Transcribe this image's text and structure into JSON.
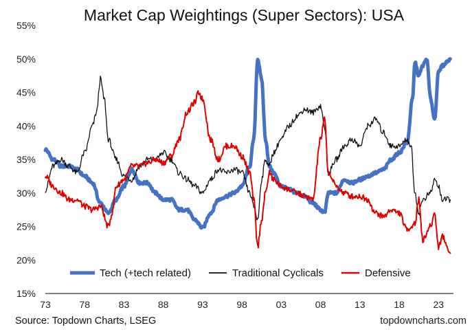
{
  "chart_data": {
    "type": "line",
    "title": "Market Cap Weightings (Super Sectors): USA",
    "xlabel": "",
    "ylabel": "",
    "x_tick_labels": [
      "73",
      "78",
      "83",
      "88",
      "93",
      "98",
      "03",
      "08",
      "13",
      "18",
      "23"
    ],
    "x_tick_years": [
      1973,
      1978,
      1983,
      1988,
      1993,
      1998,
      2003,
      2008,
      2013,
      2018,
      2023
    ],
    "x_range": [
      1973,
      2024.9
    ],
    "y_tick_labels": [
      "15%",
      "20%",
      "25%",
      "30%",
      "35%",
      "40%",
      "45%",
      "50%",
      "55%"
    ],
    "ylim": [
      15,
      55
    ],
    "y_tick_step": 5,
    "legend_position": "bottom-inside",
    "series": [
      {
        "name": "Tech (+tech related)",
        "color": "#4472C4",
        "x": [
          1973,
          1974,
          1975,
          1976,
          1977,
          1978,
          1979,
          1980,
          1981,
          1982,
          1983,
          1984,
          1985,
          1986,
          1987,
          1988,
          1989,
          1990,
          1991,
          1992,
          1993,
          1994,
          1995,
          1996,
          1997,
          1998,
          1999,
          1999.5,
          2000,
          2000.5,
          2001,
          2001.5,
          2002,
          2003,
          2004,
          2005,
          2006,
          2007,
          2008,
          2008.5,
          2009,
          2010,
          2011,
          2012,
          2013,
          2014,
          2015,
          2016,
          2017,
          2018,
          2019,
          2019.7,
          2020,
          2020.5,
          2021,
          2021.5,
          2022,
          2022.5,
          2023,
          2023.5,
          2024.5
        ],
        "values": [
          36.5,
          35,
          34,
          34,
          33.5,
          32.5,
          31.5,
          28.5,
          27,
          29,
          31,
          33.5,
          31.5,
          31.5,
          30,
          29,
          29,
          27.5,
          27.5,
          26,
          24.8,
          27,
          29,
          29.5,
          30,
          31,
          34,
          38,
          50,
          47,
          38,
          34,
          33,
          31,
          30.5,
          30,
          29.5,
          28.5,
          27.5,
          27,
          30,
          30,
          32,
          31.5,
          32,
          32.5,
          33,
          33.5,
          35,
          36,
          37.5,
          44,
          49.5,
          47.5,
          49,
          50,
          44,
          41,
          48,
          49,
          50
        ]
      },
      {
        "name": "Traditional Cyclicals",
        "color": "#111111",
        "x": [
          1973,
          1974,
          1975,
          1976,
          1977,
          1978,
          1979,
          1979.5,
          1980,
          1980.5,
          1981,
          1982,
          1983,
          1984,
          1985,
          1986,
          1987,
          1988,
          1989,
          1990,
          1991,
          1992,
          1993,
          1994,
          1995,
          1996,
          1997,
          1998,
          1999,
          1999.5,
          2000,
          2000.5,
          2001,
          2001.5,
          2002,
          2003,
          2004,
          2005,
          2006,
          2007,
          2008,
          2008.5,
          2009,
          2010,
          2011,
          2012,
          2013,
          2014,
          2015,
          2016,
          2017,
          2018,
          2019,
          2019.5,
          2020,
          2020.5,
          2021,
          2022,
          2022.5,
          2023,
          2023.5,
          2024.5
        ],
        "values": [
          30.5,
          34,
          35,
          34,
          33,
          36,
          40,
          42,
          47,
          44,
          38,
          35,
          32.5,
          32,
          34,
          35,
          35,
          36,
          35,
          33,
          32,
          31,
          30,
          32,
          33.5,
          33,
          33.5,
          33,
          30,
          28,
          26,
          32,
          35,
          34,
          36,
          38,
          40,
          41.5,
          42.5,
          42,
          43,
          40,
          33,
          35,
          37,
          38,
          37,
          40,
          41,
          39,
          37,
          37,
          38,
          37,
          30,
          27,
          29,
          30,
          32,
          31,
          29,
          29
        ]
      },
      {
        "name": "Defensive",
        "color": "#E00000",
        "x": [
          1973,
          1974,
          1975,
          1976,
          1977,
          1978,
          1979,
          1980,
          1981,
          1981.5,
          1982,
          1983,
          1984,
          1985,
          1986,
          1987,
          1988,
          1989,
          1990,
          1991,
          1992,
          1992.5,
          1993,
          1994,
          1995,
          1996,
          1997,
          1998,
          1999,
          1999.5,
          2000,
          2000.5,
          2001,
          2001.5,
          2002,
          2003,
          2004,
          2005,
          2006,
          2007,
          2008,
          2008.5,
          2009,
          2010,
          2011,
          2012,
          2013,
          2014,
          2015,
          2016,
          2017,
          2018,
          2019,
          2019.5,
          2020,
          2020.5,
          2021,
          2022,
          2022.5,
          2023,
          2023.5,
          2024.5
        ],
        "values": [
          32.5,
          31,
          30,
          29,
          29,
          28,
          27.5,
          28,
          25,
          27,
          31,
          32,
          34,
          34,
          34.5,
          35,
          34.5,
          35.5,
          38,
          42,
          43.5,
          45,
          44,
          38,
          35,
          37,
          37,
          35.5,
          33,
          29,
          22,
          26,
          30,
          33,
          32,
          31,
          30.5,
          30,
          29.5,
          29,
          38,
          41,
          33,
          31,
          30,
          29.5,
          29.5,
          29,
          27,
          26.5,
          27.5,
          27,
          24.5,
          25,
          25.5,
          29,
          23,
          25,
          27,
          22,
          23.5,
          21
        ]
      }
    ]
  },
  "footer": {
    "source": "Source: Topdown Charts, LSEG",
    "brand": "topdowncharts.com"
  }
}
